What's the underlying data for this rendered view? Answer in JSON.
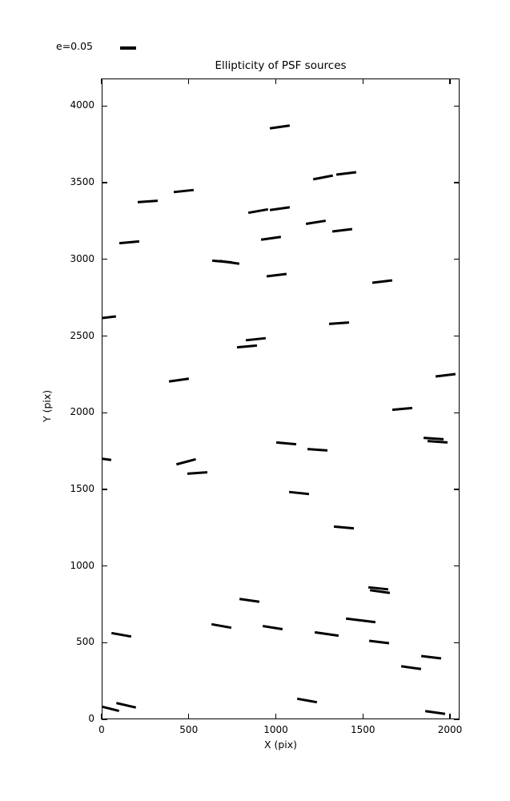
{
  "title": "Ellipticity of PSF sources",
  "legend": {
    "label": "e=0.05"
  },
  "axes": {
    "xlabel": "X (pix)",
    "ylabel": "Y (pix)"
  },
  "style": {
    "stick_color": "#000000",
    "frame_color": "#000000",
    "background": "#ffffff"
  },
  "chart_data": {
    "type": "scatter",
    "subtype": "ellipticity-whisker-plot",
    "title": "Ellipticity of PSF sources",
    "xlabel": "X (pix)",
    "ylabel": "Y (pix)",
    "xlim": [
      0,
      2055
    ],
    "ylim": [
      0,
      4180
    ],
    "xticks": [
      0,
      500,
      1000,
      1500,
      2000
    ],
    "yticks": [
      0,
      500,
      1000,
      1500,
      2000,
      2500,
      3000,
      3500,
      4000
    ],
    "grid": false,
    "legend": {
      "label": "e=0.05",
      "position": "above-axes-top-left"
    },
    "marker": "short line segment; length encodes ellipticity, angle encodes orientation",
    "default_length": 115,
    "sticks": [
      {
        "x": 468,
        "y": 3452,
        "a": 6
      },
      {
        "x": 262,
        "y": 3380,
        "a": 4
      },
      {
        "x": 152,
        "y": 3114,
        "a": 5
      },
      {
        "x": 20,
        "y": 2625,
        "a": 7
      },
      {
        "x": 439,
        "y": 2215,
        "a": 8
      },
      {
        "x": 1017,
        "y": 3870,
        "a": 8
      },
      {
        "x": 1266,
        "y": 3537,
        "a": 11
      },
      {
        "x": 1399,
        "y": 3567,
        "a": 7
      },
      {
        "x": 895,
        "y": 3320,
        "a": 10
      },
      {
        "x": 1019,
        "y": 3336,
        "a": 8
      },
      {
        "x": 1225,
        "y": 3247,
        "a": 9
      },
      {
        "x": 968,
        "y": 3142,
        "a": 8
      },
      {
        "x": 1375,
        "y": 3196,
        "a": 7
      },
      {
        "x": 686,
        "y": 2988,
        "a": -5
      },
      {
        "x": 728,
        "y": 2983,
        "a": -8
      },
      {
        "x": 1001,
        "y": 2900,
        "a": 7
      },
      {
        "x": 1608,
        "y": 2862,
        "a": 7
      },
      {
        "x": 1358,
        "y": 2586,
        "a": 4
      },
      {
        "x": 879,
        "y": 2484,
        "a": 6
      },
      {
        "x": 830,
        "y": 2437,
        "a": 5
      },
      {
        "x": 1971,
        "y": 2248,
        "a": 7
      },
      {
        "x": 1722,
        "y": 2027,
        "a": 5
      },
      {
        "x": -8,
        "y": 1706,
        "a": -8
      },
      {
        "x": 480,
        "y": 1686,
        "a": 15
      },
      {
        "x": 547,
        "y": 1611,
        "a": 4
      },
      {
        "x": 1054,
        "y": 1806,
        "a": -5
      },
      {
        "x": 1236,
        "y": 1760,
        "a": -4
      },
      {
        "x": 1900,
        "y": 1837,
        "a": -4
      },
      {
        "x": 1924,
        "y": 1815,
        "a": -4
      },
      {
        "x": 1129,
        "y": 1481,
        "a": -6
      },
      {
        "x": 1388,
        "y": 1254,
        "a": -5
      },
      {
        "x": 1583,
        "y": 859,
        "a": -6
      },
      {
        "x": 1594,
        "y": 839,
        "a": -8
      },
      {
        "x": 842,
        "y": 780,
        "a": -8
      },
      {
        "x": 106,
        "y": 553,
        "a": -10
      },
      {
        "x": 684,
        "y": 614,
        "a": -10
      },
      {
        "x": 978,
        "y": 600,
        "a": -9
      },
      {
        "x": 1288,
        "y": 559,
        "a": -8,
        "len": 138
      },
      {
        "x": 1481,
        "y": 652,
        "a": -7,
        "len": 168
      },
      {
        "x": 1589,
        "y": 508,
        "a": -7
      },
      {
        "x": 1886,
        "y": 411,
        "a": -7
      },
      {
        "x": 1774,
        "y": 340,
        "a": -8
      },
      {
        "x": 1910,
        "y": 49,
        "a": -8
      },
      {
        "x": 1174,
        "y": 127,
        "a": -10
      },
      {
        "x": 41,
        "y": 77,
        "a": -14
      },
      {
        "x": 136,
        "y": 97,
        "a": -13
      }
    ]
  }
}
